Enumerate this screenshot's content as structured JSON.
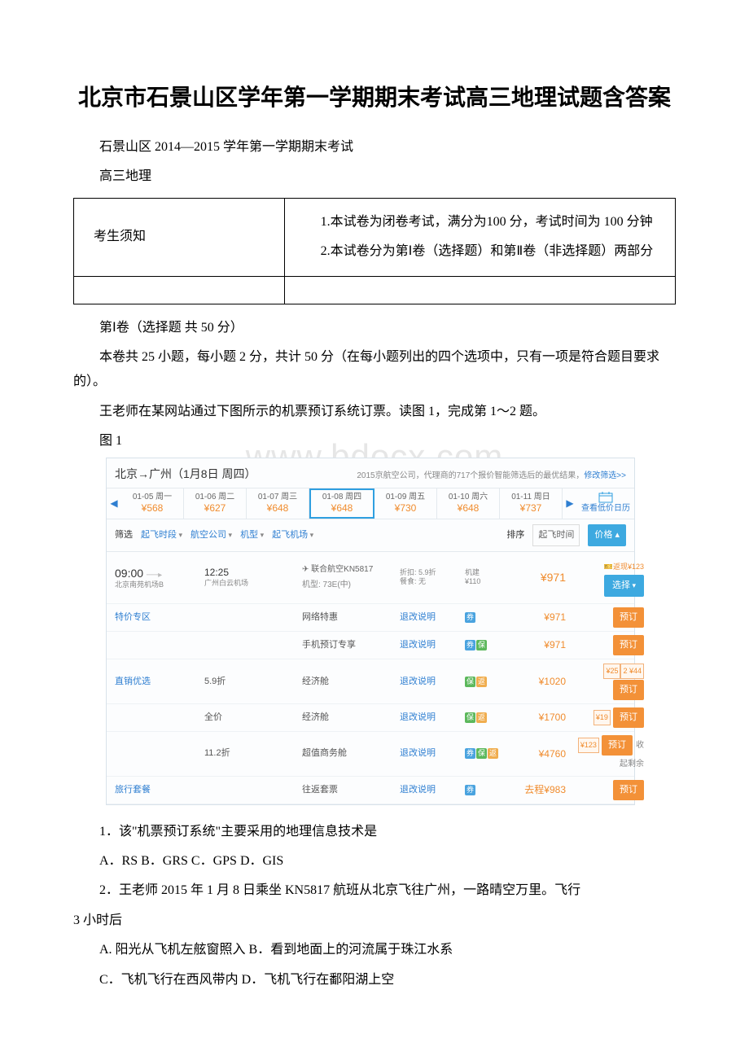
{
  "title": "北京市石景山区学年第一学期期末考试高三地理试题含答案",
  "intro1": "石景山区 2014—2015 学年第一学期期末考试",
  "intro2": "高三地理",
  "table": {
    "left": "考生须知",
    "r1": "1.本试卷为闭卷考试，满分为100 分，考试时间为 100 分钟",
    "r2": "2.本试卷分为第Ⅰ卷（选择题）和第Ⅱ卷（非选择题）两部分"
  },
  "p1": "第Ⅰ卷（选择题 共 50 分）",
  "p2": "本卷共 25 小题，每小题 2 分，共计 50 分（在每小题列出的四个选项中，只有一项是符合题目要求的）。",
  "p3": "王老师在某网站通过下图所示的机票预订系统订票。读图 1，完成第 1～2 题。",
  "fig_label": "图 1",
  "watermark": "www.bdocx.com",
  "q1": "1．该\"机票预订系统\"主要采用的地理信息技术是",
  "q1o": "A．RS B．GRS C．GPS D．GIS",
  "q2": "2．王老师 2015 年 1 月 8 日乘坐 KN5817 航班从北京飞往广州，一路晴空万里。飞行",
  "q2b": "3 小时后",
  "q2o1": "A. 阳光从飞机左舷窗照入 B．看到地面上的河流属于珠江水系",
  "q2o2": "C．飞机飞行在西风带内 D．飞机飞行在鄱阳湖上空",
  "flight": {
    "route": "北京→广州（1月8日 周四）",
    "sub_text": "2015京航空公司，代理商的717个报价智能筛选后的最优结果，",
    "sub_link": "修改筛选>>",
    "dates": [
      {
        "label": "01-05 周一",
        "price": "¥568"
      },
      {
        "label": "01-06 周二",
        "price": "¥627"
      },
      {
        "label": "01-07 周三",
        "price": "¥648"
      },
      {
        "label": "01-08 周四",
        "price": "¥648"
      },
      {
        "label": "01-09 周五",
        "price": "¥730"
      },
      {
        "label": "01-10 周六",
        "price": "¥648"
      },
      {
        "label": "01-11 周日",
        "price": "¥737"
      }
    ],
    "cal_label": "查看低价日历",
    "filter": {
      "label": "筛选",
      "dd1": "起飞时段",
      "dd2": "航空公司",
      "dd3": "机型",
      "dd4": "起飞机场",
      "sort_label": "排序",
      "sort_dd": "起飞时间",
      "sort_btn": "价格 ▴"
    },
    "row0": {
      "dep_time": "09:00",
      "dep_ap": "北京南苑机场B",
      "arr_time": "12:25",
      "arr_ap": "广州白云机场",
      "airline": "✈ 联合航空KN5817",
      "plane": "机型: 73E(中)",
      "disc": "折扣: 5.9折",
      "meal": "餐食: 无",
      "tax": "机建",
      "taxv": "¥110",
      "price": "¥971",
      "coupon": "返现¥123",
      "btn": "选择"
    },
    "rows": [
      {
        "c1": "特价专区",
        "c2": "",
        "c3": "网络特惠",
        "link": "退改说明",
        "badges": [
          "b"
        ],
        "price": "¥971",
        "coupon": [],
        "btn": "预订",
        "extra": ""
      },
      {
        "c1": "",
        "c2": "",
        "c3": "手机预订专享",
        "link": "退改说明",
        "badges": [
          "b",
          "g"
        ],
        "price": "¥971",
        "coupon": [],
        "btn": "预订",
        "extra": ""
      },
      {
        "c1": "直销优选",
        "c2": "5.9折",
        "c3": "经济舱",
        "link": "退改说明",
        "badges": [
          "g",
          "o"
        ],
        "price": "¥1020",
        "coupon": [
          "¥25",
          "2 ¥44"
        ],
        "btn": "预订",
        "extra": ""
      },
      {
        "c1": "",
        "c2": "全价",
        "c3": "经济舱",
        "link": "退改说明",
        "badges": [
          "g",
          "o"
        ],
        "price": "¥1700",
        "coupon": [
          "¥19"
        ],
        "btn": "预订",
        "extra": ""
      },
      {
        "c1": "",
        "c2": "11.2折",
        "c3": "超值商务舱",
        "link": "退改说明",
        "badges": [
          "b",
          "g",
          "o"
        ],
        "price": "¥4760",
        "coupon": [
          "¥123"
        ],
        "btn": "预订",
        "extra": "收起剩余"
      },
      {
        "c1": "旅行套餐",
        "c2": "",
        "c3": "往返套票",
        "link": "退改说明",
        "badges": [
          "b"
        ],
        "price": "去程¥983",
        "coupon": [],
        "btn": "预订",
        "extra": ""
      }
    ]
  }
}
